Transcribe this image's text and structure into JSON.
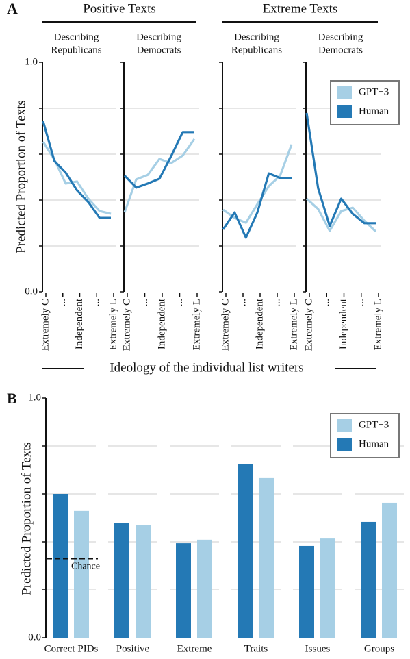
{
  "chart_data": [
    {
      "type": "line",
      "panel_label": "A",
      "ylabel": "Predicted Proportion of Texts",
      "xlabel": "Ideology of the individual list writers",
      "ylim": [
        0,
        1
      ],
      "yticks": [
        {
          "value": 0,
          "label": "0.0"
        },
        {
          "value": 1,
          "label": "1.0"
        }
      ],
      "ygrid": [
        0.2,
        0.4,
        0.6,
        0.8
      ],
      "xlim": [
        1,
        7
      ],
      "xticks": [
        {
          "value": 1,
          "label": "Extremely C"
        },
        {
          "value": 2.5,
          "label": "..."
        },
        {
          "value": 4,
          "label": "Independent"
        },
        {
          "value": 5.5,
          "label": "..."
        },
        {
          "value": 7,
          "label": "Extremely L"
        }
      ],
      "x": [
        1,
        2,
        3,
        4,
        5,
        6,
        7
      ],
      "legend": "upper right",
      "groups": [
        {
          "title": "Positive Texts",
          "subplots": [
            {
              "title": [
                "Describing",
                "Republicans"
              ],
              "series": [
                {
                  "name": "GPT−3",
                  "color": "#a6cfe5",
                  "values": [
                    0.654,
                    0.576,
                    0.472,
                    0.481,
                    0.406,
                    0.352,
                    0.34
                  ]
                },
                {
                  "name": "Human",
                  "color": "#2479b5",
                  "values": [
                    0.743,
                    0.57,
                    0.519,
                    0.442,
                    0.391,
                    0.322,
                    0.322
                  ]
                }
              ]
            },
            {
              "title": [
                "Describing",
                "Democrats"
              ],
              "series": [
                {
                  "name": "GPT−3",
                  "color": "#a6cfe5",
                  "values": [
                    0.346,
                    0.49,
                    0.51,
                    0.579,
                    0.561,
                    0.594,
                    0.666
                  ]
                },
                {
                  "name": "Human",
                  "color": "#2479b5",
                  "values": [
                    0.507,
                    0.454,
                    0.472,
                    0.493,
                    0.591,
                    0.696,
                    0.696
                  ]
                }
              ]
            }
          ]
        },
        {
          "title": "Extreme Texts",
          "subplots": [
            {
              "title": [
                "Describing",
                "Republicans"
              ],
              "series": [
                {
                  "name": "GPT−3",
                  "color": "#a6cfe5",
                  "values": [
                    0.358,
                    0.322,
                    0.301,
                    0.382,
                    0.46,
                    0.507,
                    0.642
                  ]
                },
                {
                  "name": "Human",
                  "color": "#2479b5",
                  "values": [
                    0.272,
                    0.346,
                    0.236,
                    0.346,
                    0.516,
                    0.496,
                    0.496
                  ]
                }
              ]
            },
            {
              "title": [
                "Describing",
                "Democrats"
              ],
              "series": [
                {
                  "name": "GPT−3",
                  "color": "#a6cfe5",
                  "values": [
                    0.406,
                    0.361,
                    0.266,
                    0.352,
                    0.367,
                    0.31,
                    0.263
                  ]
                },
                {
                  "name": "Human",
                  "color": "#2479b5",
                  "values": [
                    0.779,
                    0.451,
                    0.287,
                    0.406,
                    0.34,
                    0.299,
                    0.299
                  ]
                }
              ]
            }
          ]
        }
      ]
    },
    {
      "type": "bar",
      "panel_label": "B",
      "ylabel": "Predicted Proportion of Texts",
      "ylim": [
        0,
        1
      ],
      "yticks": [
        {
          "value": 0,
          "label": "0.0"
        },
        {
          "value": 1,
          "label": "1.0"
        }
      ],
      "ygrid": [
        0.2,
        0.4,
        0.6,
        0.8
      ],
      "categories": [
        "Correct PIDs",
        "Positive",
        "Extreme",
        "Traits",
        "Issues",
        "Groups"
      ],
      "legend": "upper right",
      "chance": {
        "label": "Chance",
        "value": 0.33
      },
      "series": [
        {
          "name": "Human",
          "color": "#2479b5",
          "values": [
            0.6,
            0.48,
            0.394,
            0.723,
            0.383,
            0.483
          ]
        },
        {
          "name": "GPT−3",
          "color": "#a6cfe5",
          "values": [
            0.529,
            0.469,
            0.409,
            0.666,
            0.414,
            0.563
          ]
        }
      ]
    }
  ]
}
